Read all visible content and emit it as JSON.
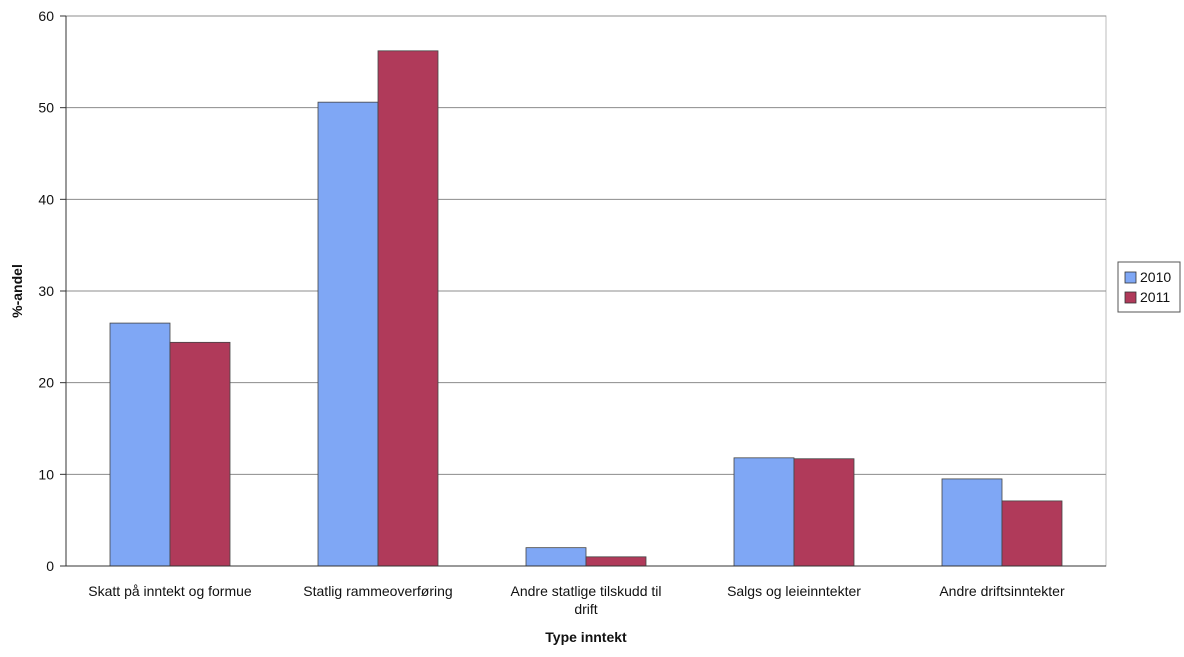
{
  "chart_data": {
    "type": "bar",
    "title": "",
    "xlabel": "Type inntekt",
    "ylabel": "%-andel",
    "ylim": [
      0,
      60
    ],
    "yticks": [
      0,
      10,
      20,
      30,
      40,
      50,
      60
    ],
    "grid": true,
    "legend_position": "right",
    "categories": [
      [
        "Skatt på inntekt og formue"
      ],
      [
        "Statlig rammeoverføring"
      ],
      [
        "Andre statlige tilskudd til",
        "drift"
      ],
      [
        "Salgs og leieinntekter"
      ],
      [
        "Andre driftsinntekter"
      ]
    ],
    "series": [
      {
        "name": "2010",
        "color": "#7fa7f5",
        "values": [
          26.5,
          50.6,
          2.0,
          11.8,
          9.5
        ]
      },
      {
        "name": "2011",
        "color": "#b03a5a",
        "values": [
          24.4,
          56.2,
          1.0,
          11.7,
          7.1
        ]
      }
    ]
  }
}
